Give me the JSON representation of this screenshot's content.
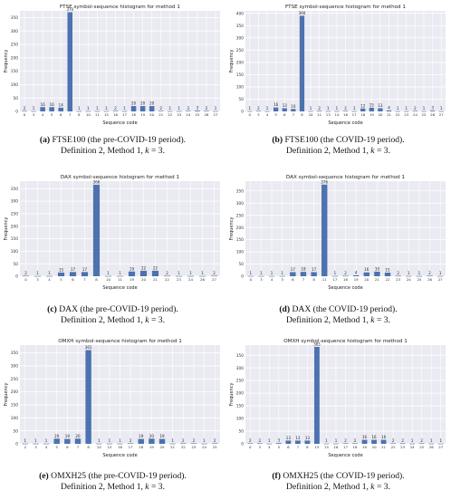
{
  "chart_data": [
    {
      "type": "bar",
      "title": "FTSE symbol-sequence histogram for method 1",
      "xlabel": "Sequence code",
      "ylabel": "Frequency",
      "ylim": [
        0,
        375
      ],
      "yticks": [
        0,
        50,
        100,
        150,
        200,
        250,
        300,
        350
      ],
      "grid": true,
      "categories": [
        "0",
        "3",
        "4",
        "5",
        "6",
        "7",
        "8",
        "10",
        "11",
        "15",
        "16",
        "17",
        "18",
        "19",
        "20",
        "21",
        "22",
        "23",
        "24",
        "25",
        "26",
        "27"
      ],
      "values": [
        2,
        1,
        16,
        16,
        14,
        370,
        1,
        1,
        1,
        1,
        2,
        1,
        20,
        20,
        20,
        2,
        1,
        1,
        2,
        3,
        2,
        1
      ],
      "caption": {
        "tag": "(a)",
        "line1": " FTSE100 (the pre-COVID-19 period).",
        "line2": "Definition 2, Method 1, ",
        "k_label": "k",
        "k_value": " = 3."
      }
    },
    {
      "type": "bar",
      "title": "FTSE symbol-sequence histogram for method 1",
      "xlabel": "Sequence code",
      "ylabel": "Frequency",
      "ylim": [
        0,
        410
      ],
      "yticks": [
        0,
        50,
        100,
        150,
        200,
        250,
        300,
        350,
        400
      ],
      "grid": true,
      "categories": [
        "0",
        "3",
        "4",
        "5",
        "6",
        "7",
        "8",
        "10",
        "11",
        "13",
        "14",
        "16",
        "17",
        "18",
        "19",
        "20",
        "21",
        "22",
        "23",
        "24",
        "25",
        "26",
        "27"
      ],
      "values": [
        1,
        2,
        1,
        16,
        13,
        10,
        390,
        1,
        2,
        1,
        1,
        2,
        1,
        12,
        15,
        13,
        4,
        1,
        1,
        2,
        1,
        3,
        1
      ],
      "caption": {
        "tag": "(b)",
        "line1": " FTSE100 (the COVID-19 period).",
        "line2": "Definition 2, Method 1, ",
        "k_label": "k",
        "k_value": " = 3."
      }
    },
    {
      "type": "bar",
      "title": "DAX symbol-sequence histogram for method 1",
      "xlabel": "Sequence code",
      "ylabel": "Frequency",
      "ylim": [
        0,
        380
      ],
      "yticks": [
        0,
        50,
        100,
        150,
        200,
        250,
        300,
        350
      ],
      "grid": true,
      "categories": [
        "0",
        "3",
        "4",
        "5",
        "6",
        "7",
        "8",
        "10",
        "11",
        "19",
        "20",
        "21",
        "22",
        "23",
        "24",
        "26",
        "27"
      ],
      "values": [
        2,
        1,
        1,
        15,
        17,
        17,
        366,
        1,
        1,
        19,
        22,
        22,
        2,
        1,
        1,
        1,
        2
      ],
      "caption": {
        "tag": "(c)",
        "line1": " DAX (the pre-COVID-19 period).",
        "line2": "Definition 2, Method 1, ",
        "k_label": "k",
        "k_value": " = 3."
      }
    },
    {
      "type": "bar",
      "title": "DAX symbol-sequence histogram for method 1",
      "xlabel": "Sequence code",
      "ylabel": "Frequency",
      "ylim": [
        0,
        390
      ],
      "yticks": [
        0,
        50,
        100,
        150,
        200,
        250,
        300,
        350
      ],
      "grid": true,
      "categories": [
        "0",
        "3",
        "4",
        "5",
        "6",
        "7",
        "8",
        "11",
        "17",
        "18",
        "19",
        "20",
        "21",
        "22",
        "23",
        "24",
        "25",
        "26",
        "27"
      ],
      "values": [
        1,
        1,
        1,
        1,
        17,
        18,
        17,
        376,
        1,
        2,
        4,
        16,
        19,
        15,
        2,
        1,
        1,
        2,
        1
      ],
      "caption": {
        "tag": "(d)",
        "line1": " DAX (the COVID-19 period).",
        "line2": "Definition 2, Method 1, ",
        "k_label": "k",
        "k_value": " = 3."
      }
    },
    {
      "type": "bar",
      "title": "OMXH symbol-sequence histogram for method 1",
      "xlabel": "Sequence code",
      "ylabel": "Frequency",
      "ylim": [
        0,
        380
      ],
      "yticks": [
        0,
        50,
        100,
        150,
        200,
        250,
        300,
        350
      ],
      "grid": true,
      "categories": [
        "2",
        "3",
        "4",
        "5",
        "6",
        "7",
        "8",
        "10",
        "15",
        "16",
        "17",
        "18",
        "19",
        "20",
        "21",
        "22",
        "23",
        "24",
        "25"
      ],
      "values": [
        1,
        1,
        1,
        20,
        19,
        20,
        361,
        1,
        1,
        1,
        2,
        19,
        20,
        19,
        1,
        2,
        2,
        1,
        2
      ],
      "caption": {
        "tag": "(e)",
        "line1": " OMXH25 (the pre-COVID-19 period).",
        "line2": "Definition 2, Method 1, ",
        "k_label": "k",
        "k_value": " = 3."
      }
    },
    {
      "type": "bar",
      "title": "OMXH symbol-sequence histogram for method 1",
      "xlabel": "Sequence code",
      "ylabel": "Frequency",
      "ylim": [
        0,
        390
      ],
      "yticks": [
        0,
        50,
        100,
        150,
        200,
        250,
        300,
        350
      ],
      "grid": true,
      "categories": [
        "0",
        "3",
        "4",
        "5",
        "6",
        "7",
        "8",
        "13",
        "15",
        "16",
        "17",
        "18",
        "19",
        "20",
        "21",
        "22",
        "23",
        "24",
        "25",
        "26",
        "27"
      ],
      "values": [
        2,
        2,
        1,
        3,
        13,
        13,
        13,
        383,
        1,
        1,
        2,
        2,
        16,
        16,
        16,
        2,
        2,
        1,
        2,
        1,
        1
      ],
      "caption": {
        "tag": "(f)",
        "line1": " OMXH25 (the COVID-19 period).",
        "line2": "Definition 2, Method 1, ",
        "k_label": "k",
        "k_value": " = 3."
      }
    }
  ]
}
